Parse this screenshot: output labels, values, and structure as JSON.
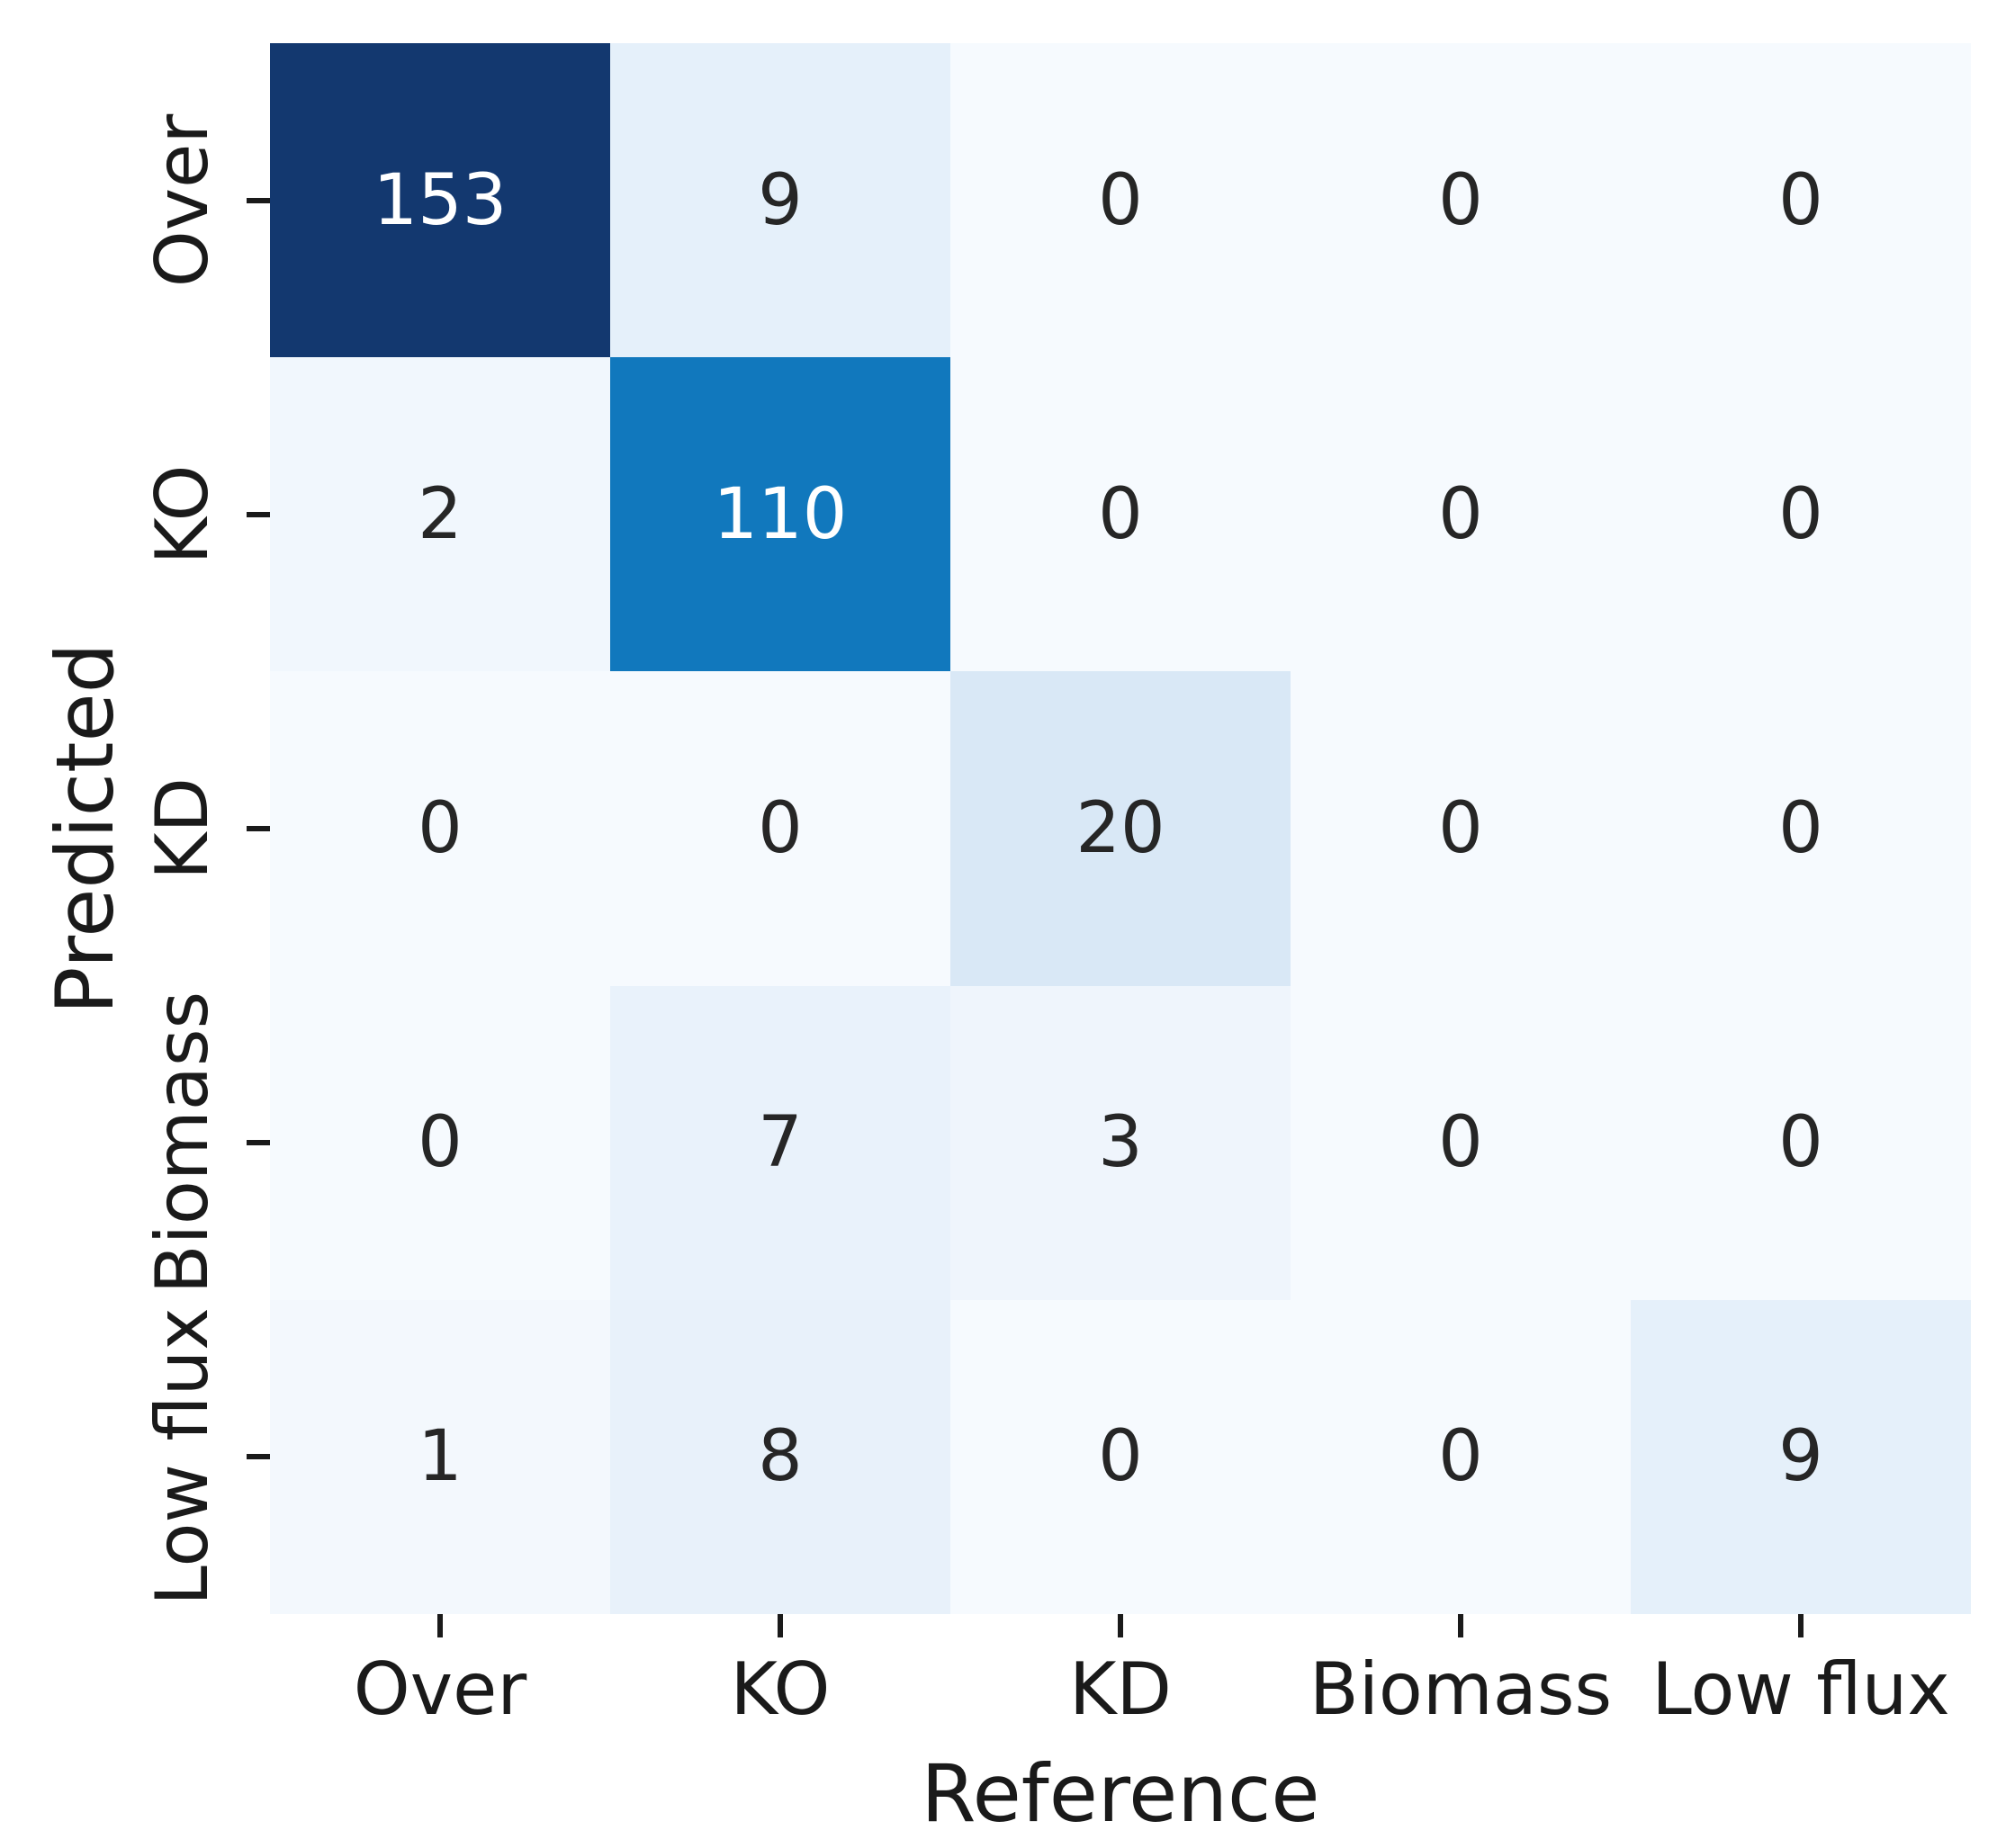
{
  "figure": {
    "background": "#ffffff",
    "text_color": "#1a1a1a"
  },
  "chart_data": {
    "type": "heatmap",
    "title": "",
    "xlabel": "Reference",
    "ylabel": "Predicted",
    "x_categories": [
      "Over",
      "KO",
      "KD",
      "Biomass",
      "Low flux"
    ],
    "y_categories": [
      "Over",
      "KO",
      "KD",
      "Biomass",
      "Low flux"
    ],
    "matrix": [
      [
        153,
        9,
        0,
        0,
        0
      ],
      [
        2,
        110,
        0,
        0,
        0
      ],
      [
        0,
        0,
        20,
        0,
        0
      ],
      [
        0,
        7,
        3,
        0,
        0
      ],
      [
        1,
        8,
        0,
        0,
        9
      ]
    ],
    "colormap": "Blues",
    "vmin": 0,
    "vmax": 153,
    "cell_colors": [
      [
        "#13386f",
        "#e5f0fa",
        "#f6fafe",
        "#f6fafe",
        "#f6fafe"
      ],
      [
        "#f1f7fd",
        "#1178bd",
        "#f6fafe",
        "#f6fafe",
        "#f6fafe"
      ],
      [
        "#f6fafe",
        "#f6fafe",
        "#d9e8f6",
        "#f6fafe",
        "#f6fafe"
      ],
      [
        "#f6fafe",
        "#e9f2fb",
        "#eff5fc",
        "#f6fafe",
        "#f6fafe"
      ],
      [
        "#f3f8fd",
        "#e8f1fa",
        "#f6fafe",
        "#f6fafe",
        "#e5f0fa"
      ]
    ],
    "annotation_color_dark": "#262626",
    "annotation_color_light": "#ffffff",
    "light_text_threshold": 100,
    "grid": false,
    "legend": "none"
  }
}
